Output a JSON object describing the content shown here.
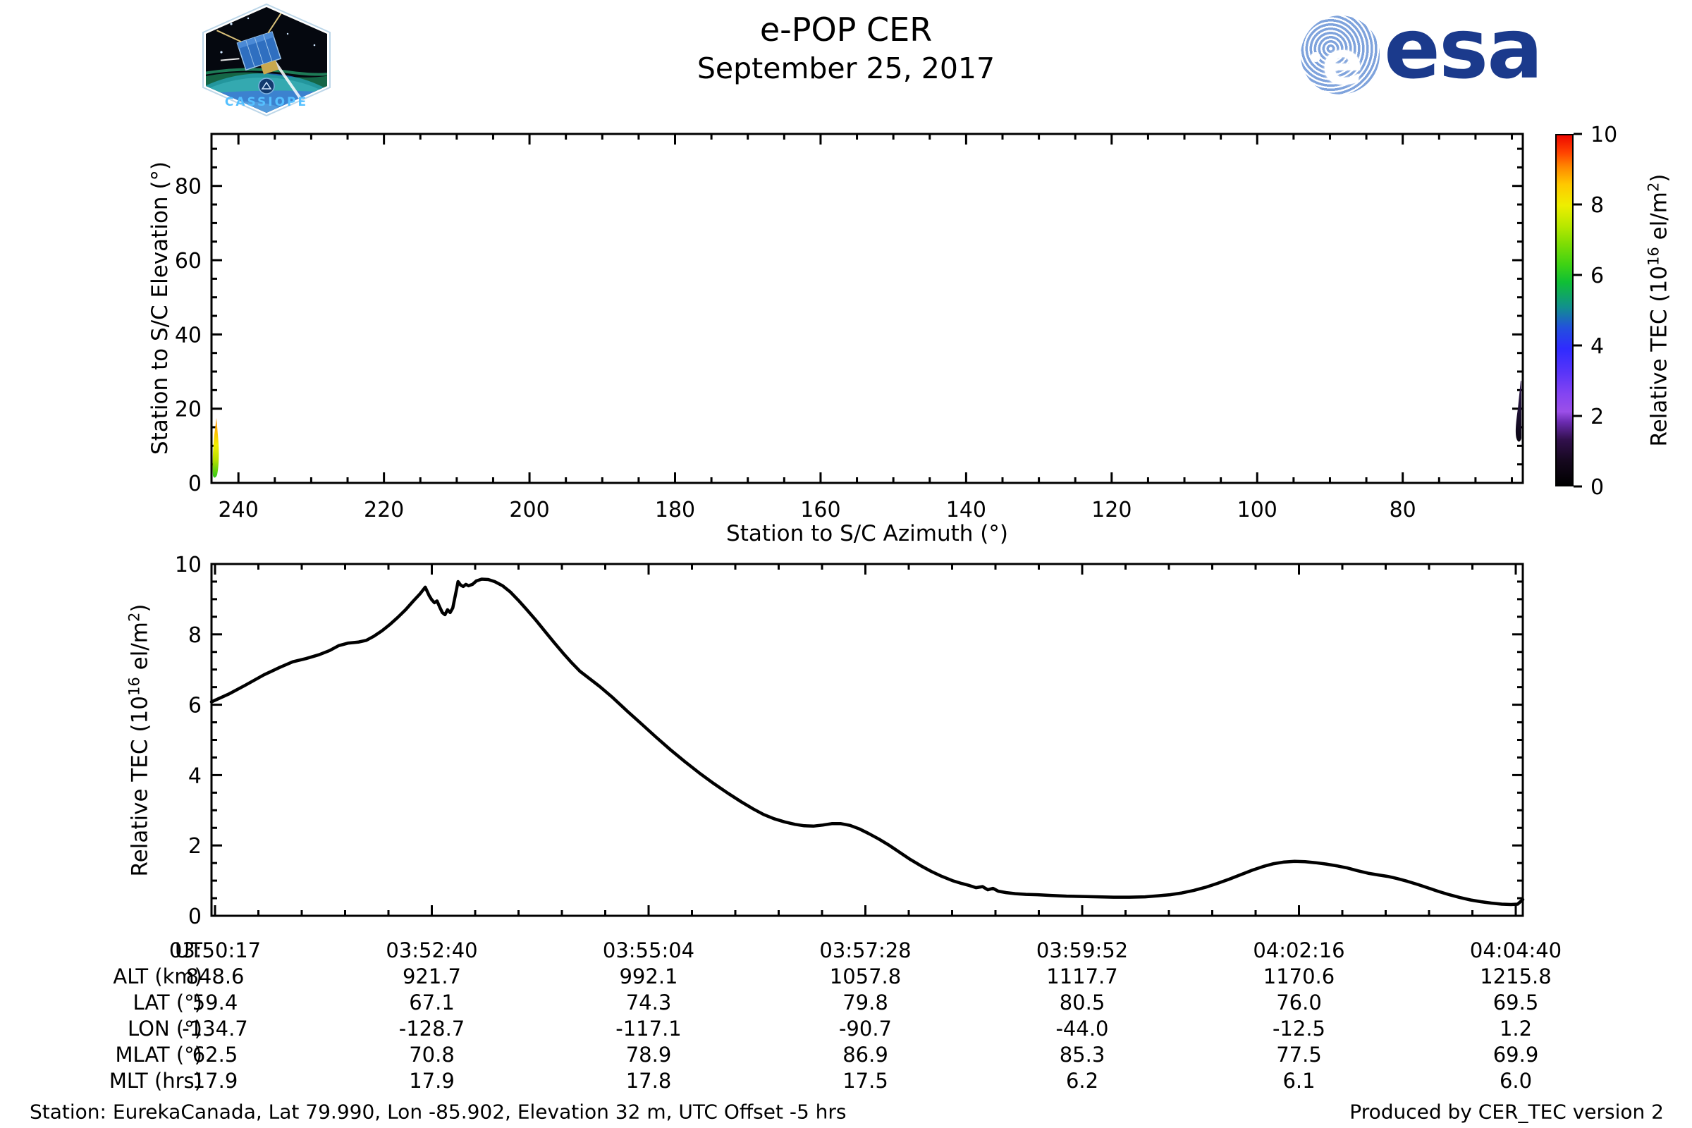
{
  "header": {
    "title": "e-POP CER",
    "date": "September 25, 2017",
    "esa_logo_text": "esa",
    "patch_text": "CASSIOPE"
  },
  "colors": {
    "line": "#000000",
    "esa_blue": "#1b3a8c",
    "patch_text_blue": "#55c0ff",
    "start_streak": [
      "#2fca18",
      "#f2ee00",
      "#ff8800"
    ],
    "end_streak": [
      "#0a0512",
      "#1b0f30",
      "#352055"
    ]
  },
  "upper_plot": {
    "xlabel": "Station to S/C Azimuth (°)",
    "ylabel": "Station to S/C Elevation (°)",
    "x_ticks": [
      240,
      220,
      200,
      180,
      160,
      140,
      120,
      100,
      80
    ],
    "y_ticks": [
      0,
      20,
      40,
      60,
      80
    ],
    "xlim": [
      243.7,
      63.5
    ],
    "ylim": [
      0,
      94
    ]
  },
  "colorbar": {
    "ticks": [
      0,
      2,
      4,
      6,
      8,
      10
    ],
    "label_prefix": "Relative TEC (10",
    "label_exp": "16",
    "label_mid": " el/m",
    "label_exp2": "2",
    "label_suffix": ")",
    "range": [
      0,
      10
    ]
  },
  "lower_plot": {
    "ylabel_prefix": "Relative TEC (10",
    "ylabel_exp": "16",
    "ylabel_mid": " el/m",
    "ylabel_exp2": "2",
    "ylabel_suffix": ")",
    "y_ticks": [
      0,
      2,
      4,
      6,
      8,
      10
    ],
    "ylim": [
      0,
      10
    ]
  },
  "table": {
    "row_labels": [
      "UT",
      "ALT (km)",
      "LAT (°)",
      "LON (°)",
      "MLAT (°)",
      "MLT (hrs)"
    ],
    "ut": [
      "03:50:17",
      "03:52:40",
      "03:55:04",
      "03:57:28",
      "03:59:52",
      "04:02:16",
      "04:04:40"
    ],
    "alt": [
      "848.6",
      "921.7",
      "992.1",
      "1057.8",
      "1117.7",
      "1170.6",
      "1215.8"
    ],
    "lat": [
      "59.4",
      "67.1",
      "74.3",
      "79.8",
      "80.5",
      "76.0",
      "69.5"
    ],
    "lon": [
      "-134.7",
      "-128.7",
      "-117.1",
      "-90.7",
      "-44.0",
      "-12.5",
      "1.2"
    ],
    "mlat": [
      "62.5",
      "70.8",
      "78.9",
      "86.9",
      "85.3",
      "77.5",
      "69.9"
    ],
    "mlt": [
      "17.9",
      "17.9",
      "17.8",
      "17.5",
      "6.2",
      "6.1",
      "6.0"
    ]
  },
  "footer": {
    "station_info": "Station: EurekaCanada, Lat 79.990, Lon -85.902, Elevation 32 m, UTC Offset -5 hrs",
    "produced_by": "Produced by CER_TEC version 2"
  },
  "chart_data": [
    {
      "id": "station-elevation-vs-azimuth",
      "type": "scatter",
      "xlabel": "Station to S/C Azimuth (°)",
      "ylabel": "Station to S/C Elevation (°)",
      "xlim": [
        243.7,
        63.5
      ],
      "ylim": [
        0,
        94
      ],
      "x_axis_reversed": true,
      "colorbar_label": "Relative TEC (10^16 el/m^2)",
      "colorbar_range": [
        0,
        10
      ],
      "series": [
        {
          "name": "pass-start-streak",
          "azimuth": 244,
          "elevation_range": [
            1.5,
            17.5
          ],
          "tec_range": [
            6.1,
            9.5
          ],
          "colors_bottom_to_top": [
            "green",
            "yellow",
            "orange"
          ]
        },
        {
          "name": "pass-end-streak",
          "azimuth": 66.5,
          "elevation_range": [
            11,
            27.5
          ],
          "tec_range": [
            0.3,
            1.5
          ],
          "colors_bottom_to_top": [
            "black",
            "dark-purple"
          ]
        }
      ]
    },
    {
      "id": "relative-tec-vs-time",
      "type": "line",
      "ylabel": "Relative TEC (10^16 el/m^2)",
      "ylim": [
        0,
        10
      ],
      "x_tick_labels_ut": [
        "03:50:17",
        "03:52:40",
        "03:55:04",
        "03:57:28",
        "03:59:52",
        "04:02:16",
        "04:04:40"
      ],
      "points_frac_value": [
        [
          0.0,
          6.08
        ],
        [
          0.013,
          6.3
        ],
        [
          0.026,
          6.56
        ],
        [
          0.04,
          6.85
        ],
        [
          0.052,
          7.06
        ],
        [
          0.062,
          7.22
        ],
        [
          0.072,
          7.31
        ],
        [
          0.082,
          7.42
        ],
        [
          0.09,
          7.54
        ],
        [
          0.097,
          7.68
        ],
        [
          0.104,
          7.75
        ],
        [
          0.112,
          7.78
        ],
        [
          0.118,
          7.83
        ],
        [
          0.124,
          7.95
        ],
        [
          0.13,
          8.1
        ],
        [
          0.136,
          8.28
        ],
        [
          0.142,
          8.48
        ],
        [
          0.148,
          8.7
        ],
        [
          0.154,
          8.95
        ],
        [
          0.159,
          9.15
        ],
        [
          0.163,
          9.34
        ],
        [
          0.166,
          9.1
        ],
        [
          0.168,
          8.98
        ],
        [
          0.17,
          8.9
        ],
        [
          0.172,
          8.95
        ],
        [
          0.174,
          8.78
        ],
        [
          0.176,
          8.62
        ],
        [
          0.178,
          8.56
        ],
        [
          0.18,
          8.7
        ],
        [
          0.182,
          8.62
        ],
        [
          0.184,
          8.75
        ],
        [
          0.187,
          9.3
        ],
        [
          0.188,
          9.5
        ],
        [
          0.19,
          9.4
        ],
        [
          0.192,
          9.36
        ],
        [
          0.194,
          9.42
        ],
        [
          0.196,
          9.38
        ],
        [
          0.199,
          9.42
        ],
        [
          0.202,
          9.52
        ],
        [
          0.206,
          9.57
        ],
        [
          0.211,
          9.56
        ],
        [
          0.216,
          9.5
        ],
        [
          0.222,
          9.38
        ],
        [
          0.228,
          9.2
        ],
        [
          0.234,
          8.97
        ],
        [
          0.24,
          8.72
        ],
        [
          0.247,
          8.42
        ],
        [
          0.254,
          8.1
        ],
        [
          0.261,
          7.78
        ],
        [
          0.268,
          7.47
        ],
        [
          0.275,
          7.18
        ],
        [
          0.281,
          6.95
        ],
        [
          0.288,
          6.75
        ],
        [
          0.296,
          6.52
        ],
        [
          0.306,
          6.2
        ],
        [
          0.317,
          5.82
        ],
        [
          0.328,
          5.45
        ],
        [
          0.339,
          5.08
        ],
        [
          0.35,
          4.72
        ],
        [
          0.361,
          4.38
        ],
        [
          0.372,
          4.06
        ],
        [
          0.383,
          3.76
        ],
        [
          0.394,
          3.48
        ],
        [
          0.404,
          3.24
        ],
        [
          0.413,
          3.04
        ],
        [
          0.421,
          2.88
        ],
        [
          0.429,
          2.76
        ],
        [
          0.437,
          2.67
        ],
        [
          0.445,
          2.6
        ],
        [
          0.452,
          2.56
        ],
        [
          0.459,
          2.55
        ],
        [
          0.466,
          2.58
        ],
        [
          0.473,
          2.62
        ],
        [
          0.48,
          2.62
        ],
        [
          0.487,
          2.57
        ],
        [
          0.494,
          2.47
        ],
        [
          0.501,
          2.34
        ],
        [
          0.509,
          2.18
        ],
        [
          0.517,
          2.0
        ],
        [
          0.525,
          1.8
        ],
        [
          0.533,
          1.6
        ],
        [
          0.541,
          1.42
        ],
        [
          0.549,
          1.26
        ],
        [
          0.557,
          1.12
        ],
        [
          0.565,
          1.0
        ],
        [
          0.572,
          0.92
        ],
        [
          0.578,
          0.86
        ],
        [
          0.583,
          0.8
        ],
        [
          0.588,
          0.83
        ],
        [
          0.592,
          0.74
        ],
        [
          0.596,
          0.78
        ],
        [
          0.6,
          0.7
        ],
        [
          0.606,
          0.66
        ],
        [
          0.613,
          0.63
        ],
        [
          0.621,
          0.61
        ],
        [
          0.63,
          0.6
        ],
        [
          0.64,
          0.58
        ],
        [
          0.652,
          0.56
        ],
        [
          0.664,
          0.55
        ],
        [
          0.676,
          0.54
        ],
        [
          0.688,
          0.53
        ],
        [
          0.7,
          0.53
        ],
        [
          0.712,
          0.54
        ],
        [
          0.722,
          0.57
        ],
        [
          0.731,
          0.6
        ],
        [
          0.74,
          0.65
        ],
        [
          0.749,
          0.72
        ],
        [
          0.758,
          0.81
        ],
        [
          0.767,
          0.92
        ],
        [
          0.776,
          1.04
        ],
        [
          0.785,
          1.17
        ],
        [
          0.794,
          1.3
        ],
        [
          0.802,
          1.4
        ],
        [
          0.81,
          1.48
        ],
        [
          0.818,
          1.53
        ],
        [
          0.826,
          1.55
        ],
        [
          0.834,
          1.54
        ],
        [
          0.842,
          1.51
        ],
        [
          0.85,
          1.47
        ],
        [
          0.858,
          1.42
        ],
        [
          0.866,
          1.36
        ],
        [
          0.874,
          1.28
        ],
        [
          0.882,
          1.21
        ],
        [
          0.89,
          1.16
        ],
        [
          0.897,
          1.12
        ],
        [
          0.904,
          1.06
        ],
        [
          0.912,
          0.98
        ],
        [
          0.92,
          0.89
        ],
        [
          0.928,
          0.79
        ],
        [
          0.936,
          0.69
        ],
        [
          0.944,
          0.6
        ],
        [
          0.952,
          0.52
        ],
        [
          0.96,
          0.45
        ],
        [
          0.968,
          0.4
        ],
        [
          0.976,
          0.36
        ],
        [
          0.984,
          0.33
        ],
        [
          0.991,
          0.32
        ],
        [
          0.996,
          0.33
        ],
        [
          1.0,
          0.46
        ]
      ]
    },
    {
      "id": "ephemeris-table",
      "type": "table",
      "row_labels": [
        "UT",
        "ALT (km)",
        "LAT (°)",
        "LON (°)",
        "MLAT (°)",
        "MLT (hrs)"
      ],
      "columns": [
        [
          "03:50:17",
          "848.6",
          "59.4",
          "-134.7",
          "62.5",
          "17.9"
        ],
        [
          "03:52:40",
          "921.7",
          "67.1",
          "-128.7",
          "70.8",
          "17.9"
        ],
        [
          "03:55:04",
          "992.1",
          "74.3",
          "-117.1",
          "78.9",
          "17.8"
        ],
        [
          "03:57:28",
          "1057.8",
          "79.8",
          "-90.7",
          "86.9",
          "17.5"
        ],
        [
          "03:59:52",
          "1117.7",
          "80.5",
          "-44.0",
          "85.3",
          "6.2"
        ],
        [
          "04:02:16",
          "1170.6",
          "76.0",
          "-12.5",
          "77.5",
          "6.1"
        ],
        [
          "04:04:40",
          "1215.8",
          "69.5",
          "1.2",
          "69.9",
          "6.0"
        ]
      ]
    }
  ]
}
